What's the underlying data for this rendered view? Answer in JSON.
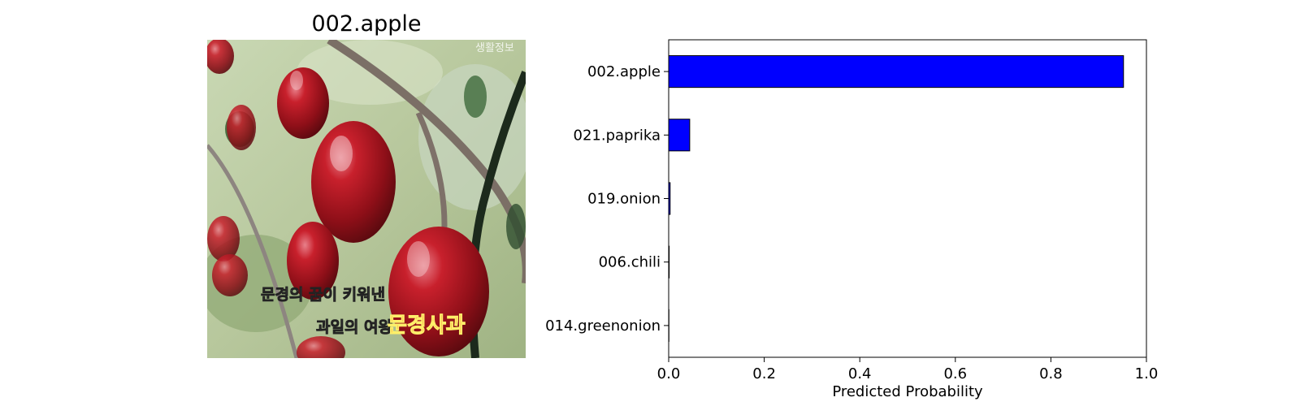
{
  "image_panel": {
    "title": "002.apple",
    "overlay_line1": "문경의 꿈이 키워낸",
    "overlay_line2": "과일의 여왕",
    "overlay_brand": "문경사과",
    "corner_text": "생활정보"
  },
  "chart_data": {
    "type": "bar",
    "orientation": "horizontal",
    "categories": [
      "002.apple",
      "021.paprika",
      "019.onion",
      "006.chili",
      "014.greenonion"
    ],
    "values": [
      0.952,
      0.044,
      0.003,
      0.001,
      0.0005
    ],
    "xlabel": "Predicted Probability",
    "ylabel": "",
    "xlim": [
      0.0,
      1.0
    ],
    "xticks": [
      "0.0",
      "0.2",
      "0.4",
      "0.6",
      "0.8",
      "1.0"
    ],
    "bar_color": "#0000ff",
    "edge_color": "#000000",
    "grid": false
  }
}
